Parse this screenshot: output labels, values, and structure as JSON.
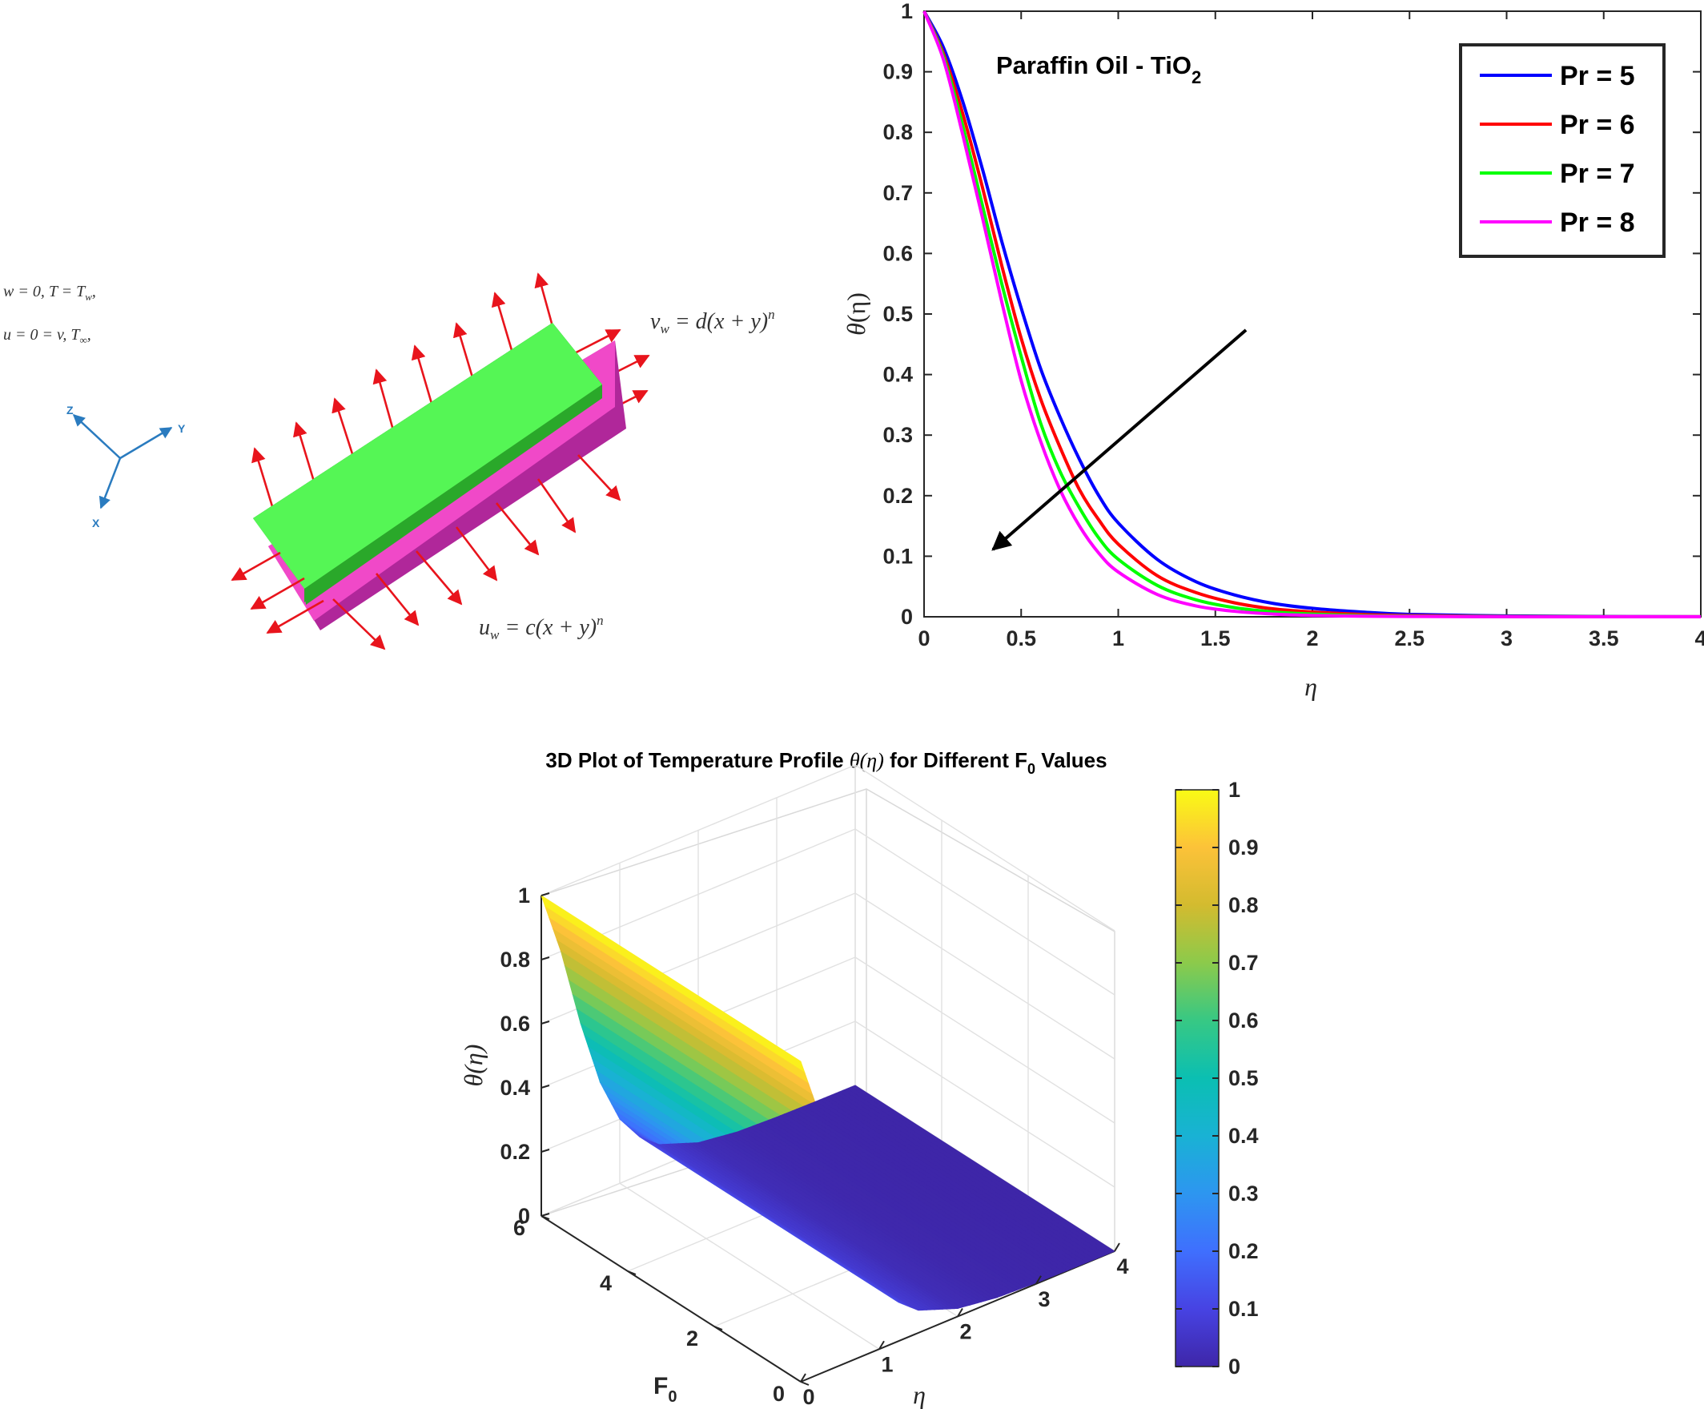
{
  "schematic": {
    "left_eq_1": "w = 0,   T = T",
    "left_eq_1_sub": "w",
    "left_eq_1_tail": ",",
    "left_eq_2": "u = 0 = v,   T",
    "left_eq_2_sub": "∞",
    "left_eq_2_tail": ",",
    "vw_lhs": "v",
    "vw_lhs_sub": "w",
    "vw_rhs": " = d(x + y)",
    "vw_exp": "n",
    "uw_lhs": "u",
    "uw_lhs_sub": "w",
    "uw_rhs": " = c(x + y)",
    "uw_exp": "n",
    "axis_z": "Z",
    "axis_y": "Y",
    "axis_x": "X",
    "colors": {
      "plate_top": "#55f655",
      "plate_side": "#2aa82a",
      "sheet": "#f049c8",
      "sheet_side": "#b0279a",
      "arrows": "#e8141c",
      "axes": "#2a7bbf"
    }
  },
  "chart_data": [
    {
      "type": "line",
      "annotation": "Paraffin Oil - TiO",
      "annotation_sub": "2",
      "xlabel": "η",
      "ylabel_main": "θ",
      "ylabel_arg": "(η)",
      "xlim": [
        0,
        4
      ],
      "ylim": [
        0,
        1
      ],
      "xticks": [
        "0",
        "0.5",
        "1",
        "1.5",
        "2",
        "2.5",
        "3",
        "3.5",
        "4"
      ],
      "yticks": [
        "0",
        "0.1",
        "0.2",
        "0.3",
        "0.4",
        "0.5",
        "0.6",
        "0.7",
        "0.8",
        "0.9",
        "1"
      ],
      "legend_position": "top-right",
      "trend_arrow": "decreasing θ with increasing Pr",
      "x": [
        0,
        0.1,
        0.2,
        0.3,
        0.4,
        0.5,
        0.6,
        0.7,
        0.8,
        0.9,
        1.0,
        1.2,
        1.4,
        1.6,
        1.8,
        2.0,
        2.25,
        2.5,
        3.0,
        3.5,
        4.0
      ],
      "series": [
        {
          "name": "Pr = 5",
          "color": "#0000ff",
          "values": [
            1.0,
            0.94,
            0.85,
            0.74,
            0.62,
            0.51,
            0.41,
            0.33,
            0.26,
            0.2,
            0.155,
            0.095,
            0.058,
            0.036,
            0.022,
            0.014,
            0.008,
            0.004,
            0.0015,
            0.0005,
            0.0002
          ]
        },
        {
          "name": "Pr = 6",
          "color": "#ff0000",
          "values": [
            1.0,
            0.93,
            0.83,
            0.71,
            0.58,
            0.46,
            0.36,
            0.28,
            0.21,
            0.16,
            0.12,
            0.068,
            0.04,
            0.023,
            0.013,
            0.008,
            0.004,
            0.002,
            0.0006,
            0.0002,
            0.0001
          ]
        },
        {
          "name": "Pr = 7",
          "color": "#00ff00",
          "values": [
            1.0,
            0.925,
            0.81,
            0.68,
            0.55,
            0.43,
            0.32,
            0.24,
            0.18,
            0.13,
            0.095,
            0.052,
            0.028,
            0.015,
            0.008,
            0.0045,
            0.002,
            0.001,
            0.0003,
            0.0001,
            0.0
          ]
        },
        {
          "name": "Pr = 8",
          "color": "#ff00ff",
          "values": [
            1.0,
            0.92,
            0.795,
            0.66,
            0.52,
            0.39,
            0.29,
            0.21,
            0.15,
            0.105,
            0.074,
            0.037,
            0.018,
            0.009,
            0.0045,
            0.0022,
            0.001,
            0.0005,
            0.0001,
            0.0,
            0.0
          ]
        }
      ]
    },
    {
      "type": "surface",
      "title_pre": "3D Plot of Temperature Profile ",
      "title_theta": "θ(η)",
      "title_mid": " for Different F",
      "title_sub": "0",
      "title_post": " Values",
      "zlabel": "θ(η)",
      "xlabel": "η",
      "ylabel": "F",
      "ylabel_sub": "0",
      "eta_range": [
        0,
        4
      ],
      "F0_range": [
        0,
        6
      ],
      "z_range": [
        0,
        1
      ],
      "eta_ticks": [
        "0",
        "1",
        "2",
        "3",
        "4"
      ],
      "F0_ticks": [
        "0",
        "2",
        "4",
        "6"
      ],
      "z_ticks": [
        "0",
        "0.2",
        "0.4",
        "0.6",
        "0.8",
        "1"
      ],
      "colorbar_ticks": [
        "0",
        "0.1",
        "0.2",
        "0.3",
        "0.4",
        "0.5",
        "0.6",
        "0.7",
        "0.8",
        "0.9",
        "1"
      ],
      "colormap": "parula",
      "profile_eta": [
        0,
        0.25,
        0.5,
        0.75,
        1.0,
        1.25,
        1.5,
        2.0,
        2.5,
        3.0,
        3.5,
        4.0
      ],
      "profile_theta": [
        1.0,
        0.8,
        0.55,
        0.34,
        0.2,
        0.12,
        0.07,
        0.025,
        0.008,
        0.003,
        0.001,
        0.0
      ]
    }
  ]
}
